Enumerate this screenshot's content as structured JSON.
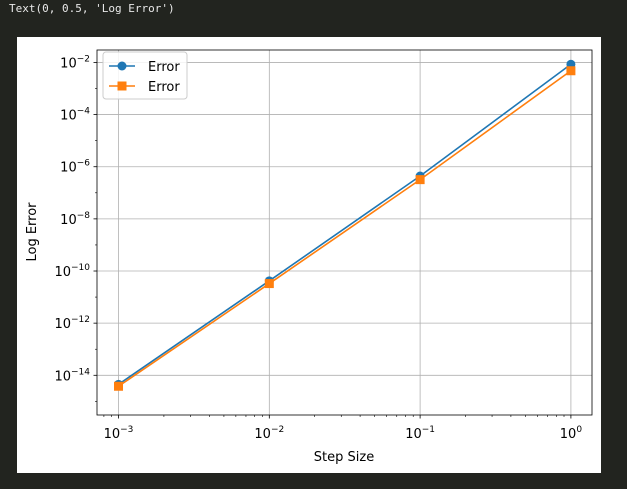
{
  "cell_output": "Text(0, 0.5, 'Log Error')",
  "chart_data": {
    "type": "line",
    "title": "",
    "xlabel": "Step Size",
    "ylabel": "Log Error",
    "xscale": "log",
    "yscale": "log",
    "xlim": [
      0.00072,
      1.38
    ],
    "ylim": [
      3e-16,
      0.03
    ],
    "grid": true,
    "legend_position": "upper-left",
    "x": [
      0.001,
      0.01,
      0.1,
      1
    ],
    "x_ticks": [
      {
        "value": 0.001,
        "base": "10",
        "exp": "−3"
      },
      {
        "value": 0.01,
        "base": "10",
        "exp": "−2"
      },
      {
        "value": 0.1,
        "base": "10",
        "exp": "−1"
      },
      {
        "value": 1,
        "base": "10",
        "exp": "0"
      }
    ],
    "y_ticks": [
      {
        "value": 1e-14,
        "base": "10",
        "exp": "−14"
      },
      {
        "value": 1e-12,
        "base": "10",
        "exp": "−12"
      },
      {
        "value": 1e-10,
        "base": "10",
        "exp": "−10"
      },
      {
        "value": 1e-08,
        "base": "10",
        "exp": "−8"
      },
      {
        "value": 1e-06,
        "base": "10",
        "exp": "−6"
      },
      {
        "value": 0.0001,
        "base": "10",
        "exp": "−4"
      },
      {
        "value": 0.01,
        "base": "10",
        "exp": "−2"
      }
    ],
    "series": [
      {
        "name": "Error",
        "color": "#1f77b4",
        "marker": "circle",
        "values": [
          4.5e-15,
          4.2e-11,
          4.4e-07,
          0.0085
        ]
      },
      {
        "name": "Error",
        "color": "#ff7f0e",
        "marker": "square",
        "values": [
          3.8e-15,
          3.3e-11,
          3.2e-07,
          0.0048
        ]
      }
    ]
  }
}
